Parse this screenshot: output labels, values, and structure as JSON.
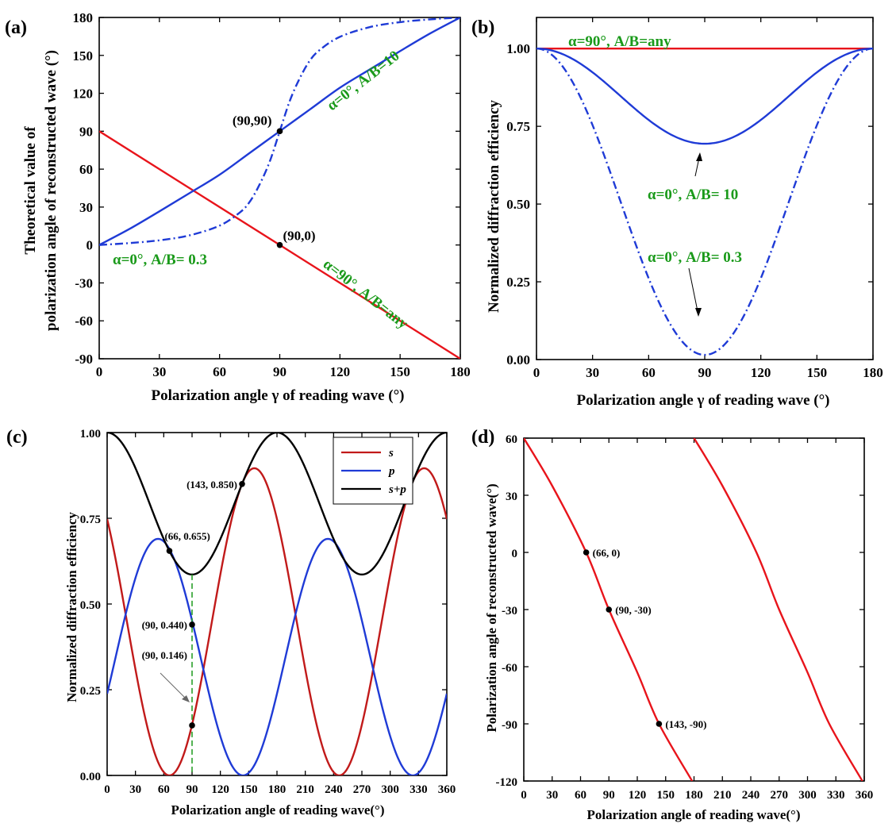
{
  "colors": {
    "red": "#e8141b",
    "blue": "#1f3bd6",
    "black": "#000000",
    "green": "#1a9a1a",
    "dark_red": "#c11a1a",
    "guide_green": "#2aa02a"
  },
  "chart_data": [
    {
      "panel": "(a)",
      "type": "line",
      "xlabel": "Polarization angle γ of reading wave (°)",
      "ylabel_line1": "Theoretical value of",
      "ylabel_line2": "polarization angle of reconstructed wave (°)",
      "xlim": [
        0,
        180
      ],
      "ylim": [
        -90,
        180
      ],
      "xticks": [
        0,
        30,
        60,
        90,
        120,
        150,
        180
      ],
      "yticks": [
        -90,
        -60,
        -30,
        0,
        30,
        60,
        90,
        120,
        150,
        180
      ],
      "series": [
        {
          "color": "red",
          "style": "solid",
          "x": [
            0,
            180
          ],
          "y": [
            90,
            -90
          ]
        },
        {
          "color": "blue",
          "style": "solid",
          "x": [
            0,
            15,
            30,
            45,
            60,
            75,
            90,
            105,
            120,
            135,
            150,
            165,
            180
          ],
          "y": [
            0,
            12.6,
            26.6,
            41.0,
            55.6,
            72.8,
            90,
            107.2,
            124.4,
            139.0,
            153.4,
            167.4,
            180
          ]
        },
        {
          "color": "blue",
          "style": "dashdot",
          "x": [
            0,
            15,
            30,
            45,
            60,
            70,
            75,
            80,
            85,
            90,
            95,
            100,
            105,
            110,
            120,
            135,
            150,
            165,
            180
          ],
          "y": [
            0,
            1.5,
            3.7,
            7.6,
            15.3,
            25.6,
            34.1,
            48.0,
            66.0,
            90,
            114.0,
            132.0,
            145.9,
            154.4,
            164.7,
            172.4,
            176.3,
            178.5,
            180
          ]
        }
      ],
      "points": [
        {
          "x": 90,
          "y": 90,
          "label": "(90,90)"
        },
        {
          "x": 90,
          "y": 0,
          "label": "(90,0)"
        }
      ],
      "annotations": [
        {
          "text": "α=0°, A/B=10"
        },
        {
          "text": "α=0°, A/B= 0.3"
        },
        {
          "text": "α=90°, A/B=any"
        }
      ]
    },
    {
      "panel": "(b)",
      "type": "line",
      "xlabel": "Polarization angle γ of reading wave (°)",
      "ylabel": "Normalized diffraction efficiency",
      "xlim": [
        0,
        180
      ],
      "ylim": [
        0,
        1.1
      ],
      "xticks": [
        0,
        30,
        60,
        90,
        120,
        150,
        180
      ],
      "yticks": [
        "0.00",
        "0.25",
        "0.50",
        "0.75",
        "1.00"
      ],
      "series": [
        {
          "color": "red",
          "style": "solid",
          "x": [
            0,
            180
          ],
          "y": [
            1,
            1
          ]
        },
        {
          "color": "blue",
          "style": "solid",
          "formula": "1 - 0.306*sin^2(x)",
          "x": [
            0,
            90,
            180
          ],
          "y": [
            1,
            0.694,
            1
          ]
        },
        {
          "color": "blue",
          "style": "dashdot",
          "formula": "1 - 0.985*sin^2(x)",
          "x": [
            0,
            90,
            180
          ],
          "y": [
            1,
            0.015,
            1
          ]
        }
      ],
      "annotations": [
        {
          "text": "α=90°, A/B=any"
        },
        {
          "text": "α=0°, A/B= 10"
        },
        {
          "text": "α=0°, A/B= 0.3"
        }
      ]
    },
    {
      "panel": "(c)",
      "type": "line",
      "xlabel": "Polarization angle of reading wave(°)",
      "ylabel": "Normalized diffraction efficiency",
      "xlim": [
        0,
        360
      ],
      "ylim": [
        0,
        1
      ],
      "xticks": [
        0,
        30,
        60,
        90,
        120,
        150,
        180,
        210,
        240,
        270,
        300,
        330,
        360
      ],
      "yticks": [
        "0.00",
        "0.25",
        "0.50",
        "0.75",
        "1.00"
      ],
      "legend": [
        "s",
        "p",
        "s+p"
      ],
      "series": [
        {
          "name": "s",
          "color": "dark_red",
          "x": [
            0,
            30,
            66,
            90,
            120,
            156,
            180,
            210,
            246,
            270,
            300,
            336,
            360
          ],
          "y": [
            0.75,
            0.38,
            0.0,
            0.146,
            0.52,
            0.896,
            0.75,
            0.38,
            0.0,
            0.146,
            0.52,
            0.896,
            0.75
          ]
        },
        {
          "name": "p",
          "color": "blue",
          "x": [
            0,
            30,
            54,
            90,
            120,
            144,
            180,
            210,
            234,
            270,
            300,
            324,
            360
          ],
          "y": [
            0.25,
            0.56,
            0.69,
            0.44,
            0.12,
            0.0,
            0.25,
            0.56,
            0.69,
            0.44,
            0.12,
            0.0,
            0.25
          ]
        },
        {
          "name": "s+p",
          "color": "black",
          "x": [
            0,
            45,
            90,
            135,
            180,
            225,
            270,
            315,
            360
          ],
          "y": [
            1.0,
            0.79,
            0.586,
            0.79,
            1.0,
            0.79,
            0.586,
            0.79,
            1.0
          ]
        }
      ],
      "points": [
        {
          "x": 66,
          "y": 0.655,
          "label": "(66, 0.655)"
        },
        {
          "x": 143,
          "y": 0.85,
          "label": "(143, 0.850)"
        },
        {
          "x": 90,
          "y": 0.44,
          "label": "(90, 0.440)"
        },
        {
          "x": 90,
          "y": 0.146,
          "label": "(90, 0.146)"
        }
      ]
    },
    {
      "panel": "(d)",
      "type": "line",
      "xlabel": "Polarization angle of reading wave(°)",
      "ylabel": "Polarization angle of reconstructed wave(°)",
      "xlim": [
        0,
        360
      ],
      "ylim": [
        -120,
        60
      ],
      "xticks": [
        0,
        30,
        60,
        90,
        120,
        150,
        180,
        210,
        240,
        270,
        300,
        330,
        360
      ],
      "yticks": [
        -120,
        -90,
        -60,
        -30,
        0,
        30,
        60
      ],
      "series": [
        {
          "color": "red",
          "x": [
            0,
            30,
            66,
            90,
            120,
            143,
            178
          ],
          "y": [
            60,
            35,
            0,
            -30,
            -63,
            -90,
            -120
          ]
        },
        {
          "color": "red",
          "x": [
            180,
            210,
            246,
            270,
            300,
            323,
            358
          ],
          "y": [
            60,
            35,
            0,
            -30,
            -63,
            -90,
            -120
          ]
        }
      ],
      "points": [
        {
          "x": 66,
          "y": 0,
          "label": "(66, 0)"
        },
        {
          "x": 90,
          "y": -30,
          "label": "(90, -30)"
        },
        {
          "x": 143,
          "y": -90,
          "label": "(143, -90)"
        }
      ]
    }
  ]
}
